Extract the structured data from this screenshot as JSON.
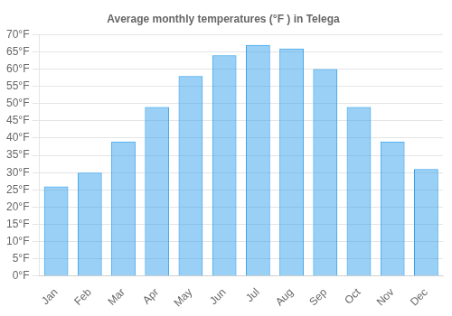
{
  "chart_data": {
    "type": "bar",
    "title": "Average monthly temperatures (°F ) in Telega",
    "categories": [
      "Jan",
      "Feb",
      "Mar",
      "Apr",
      "May",
      "Jun",
      "Jul",
      "Aug",
      "Sep",
      "Oct",
      "Nov",
      "Dec"
    ],
    "values": [
      26,
      30,
      39,
      49,
      58,
      64,
      67,
      66,
      60,
      49,
      39,
      31
    ],
    "ylim": [
      0,
      70
    ],
    "yticks": [
      {
        "value": 0,
        "label": "0°F"
      },
      {
        "value": 5,
        "label": "5°F"
      },
      {
        "value": 10,
        "label": "10°F"
      },
      {
        "value": 15,
        "label": "15°F"
      },
      {
        "value": 20,
        "label": "20°F"
      },
      {
        "value": 25,
        "label": "25°F"
      },
      {
        "value": 30,
        "label": "30°F"
      },
      {
        "value": 35,
        "label": "35°F"
      },
      {
        "value": 40,
        "label": "40°F"
      },
      {
        "value": 45,
        "label": "45°F"
      },
      {
        "value": 50,
        "label": "50°F"
      },
      {
        "value": 55,
        "label": "55°F"
      },
      {
        "value": 60,
        "label": "60°F"
      },
      {
        "value": 65,
        "label": "65°F"
      },
      {
        "value": 70,
        "label": "70°F"
      }
    ],
    "grid": true
  }
}
